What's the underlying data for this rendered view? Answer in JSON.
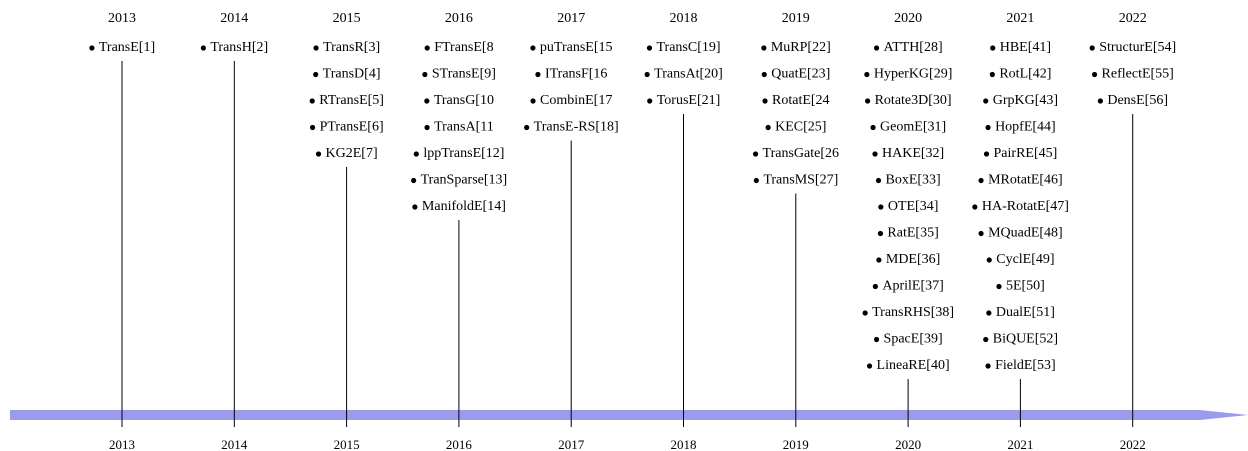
{
  "timeline": {
    "years": [
      {
        "year": "2013",
        "models": [
          "TransE[1]"
        ]
      },
      {
        "year": "2014",
        "models": [
          "TransH[2]"
        ]
      },
      {
        "year": "2015",
        "models": [
          "TransR[3]",
          "TransD[4]",
          "RTransE[5]",
          "PTransE[6]",
          "KG2E[7]"
        ]
      },
      {
        "year": "2016",
        "models": [
          "FTransE[8",
          "STransE[9]",
          "TransG[10",
          "TransA[11",
          "lppTransE[12]",
          "TranSparse[13]",
          "ManifoldE[14]"
        ]
      },
      {
        "year": "2017",
        "models": [
          "puTransE[15",
          "ITransF[16",
          "CombinE[17",
          "TransE-RS[18]"
        ]
      },
      {
        "year": "2018",
        "models": [
          "TransC[19]",
          "TransAt[20]",
          "TorusE[21]"
        ]
      },
      {
        "year": "2019",
        "models": [
          "MuRP[22]",
          "QuatE[23]",
          "RotatE[24",
          "KEC[25]",
          "TransGate[26",
          "TransMS[27]"
        ]
      },
      {
        "year": "2020",
        "models": [
          "ATTH[28]",
          "HyperKG[29]",
          "Rotate3D[30]",
          "GeomE[31]",
          "HAKE[32]",
          "BoxE[33]",
          "OTE[34]",
          "RatE[35]",
          "MDE[36]",
          "AprilE[37]",
          "TransRHS[38]",
          "SpacE[39]",
          "LineaRE[40]"
        ]
      },
      {
        "year": "2021",
        "models": [
          "HBE[41]",
          "RotL[42]",
          "GrpKG[43]",
          "HopfE[44]",
          "PairRE[45]",
          "MRotatE[46]",
          "HA-RotatE[47]",
          "MQuadE[48]",
          "CyclE[49]",
          "5E[50]",
          "DualE[51]",
          "BiQUE[52]",
          "FieldE[53]"
        ]
      },
      {
        "year": "2022",
        "models": [
          "StructurE[54]",
          "ReflectE[55]",
          "DensE[56]"
        ]
      }
    ]
  }
}
